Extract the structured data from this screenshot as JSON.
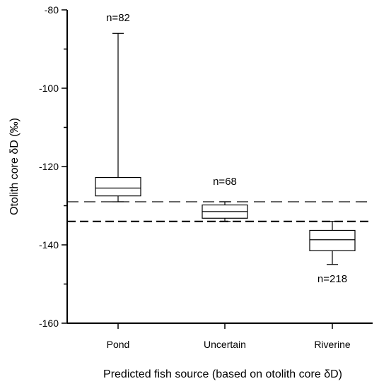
{
  "chart_data": {
    "type": "boxplot",
    "title": "",
    "xlabel": "Predicted fish source (based on otolith core δD)",
    "ylabel": "Otolith core δD (‰)",
    "ylim": [
      -160,
      -80
    ],
    "yticks": [
      -80,
      -100,
      -120,
      -140,
      -160
    ],
    "grid": false,
    "categories": [
      "Pond",
      "Uncertain",
      "Riverine"
    ],
    "boxes": [
      {
        "category": "Pond",
        "n_label": "n=82",
        "whisker_min": -129,
        "q1": -127.5,
        "median": -125.5,
        "q3": -122.8,
        "whisker_max": -86
      },
      {
        "category": "Uncertain",
        "n_label": "n=68",
        "whisker_min": -134,
        "q1": -133.2,
        "median": -131.5,
        "q3": -129.8,
        "whisker_max": -129
      },
      {
        "category": "Riverine",
        "n_label": "n=218",
        "whisker_min": -145,
        "q1": -141.5,
        "median": -138.7,
        "q3": -136.3,
        "whisker_max": -134
      }
    ],
    "reference_lines": [
      {
        "value": -129,
        "style": "dashed",
        "weight": "thin"
      },
      {
        "value": -134,
        "style": "dashed",
        "weight": "thick"
      }
    ]
  }
}
